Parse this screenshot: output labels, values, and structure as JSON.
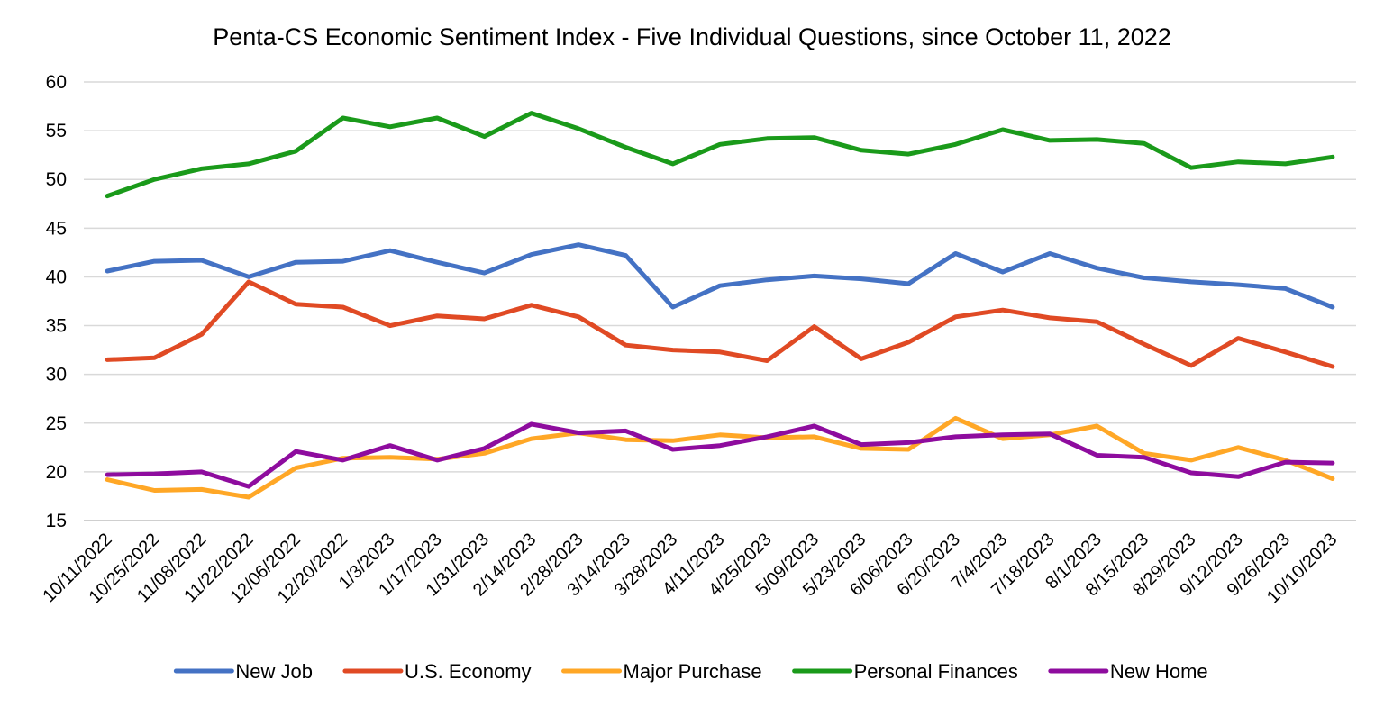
{
  "chart_data": {
    "type": "line",
    "title": "Penta-CS Economic Sentiment Index - Five Individual Questions, since October 11, 2022",
    "xlabel": "",
    "ylabel": "",
    "ylim": [
      15,
      60
    ],
    "yticks": [
      "15",
      "20",
      "25",
      "30",
      "35",
      "40",
      "45",
      "50",
      "55",
      "60"
    ],
    "grid": true,
    "legend_position": "bottom",
    "categories": [
      "10/11/2022",
      "10/25/2022",
      "11/08/2022",
      "11/22/2022",
      "12/06/2022",
      "12/20/2022",
      "1/3/2023",
      "1/17/2023",
      "1/31/2023",
      "2/14/2023",
      "2/28/2023",
      "3/14/2023",
      "3/28/2023",
      "4/11/2023",
      "4/25/2023",
      "5/09/2023",
      "5/23/2023",
      "6/06/2023",
      "6/20/2023",
      "7/4/2023",
      "7/18/2023",
      "8/1/2023",
      "8/15/2023",
      "8/29/2023",
      "9/12/2023",
      "9/26/2023",
      "10/10/2023"
    ],
    "series": [
      {
        "name": "New Job",
        "color": "#4472C4",
        "values": [
          40.6,
          41.6,
          41.7,
          40.0,
          41.5,
          41.6,
          42.7,
          41.5,
          40.4,
          42.3,
          43.3,
          42.2,
          36.9,
          39.1,
          39.7,
          40.1,
          39.8,
          39.3,
          42.4,
          40.5,
          42.4,
          40.9,
          39.9,
          39.5,
          39.2,
          38.8,
          36.9
        ]
      },
      {
        "name": "U.S. Economy",
        "color": "#E04A24",
        "values": [
          31.5,
          31.7,
          34.1,
          39.5,
          37.2,
          36.9,
          35.0,
          36.0,
          35.7,
          37.1,
          35.9,
          33.0,
          32.5,
          32.3,
          31.4,
          34.9,
          31.6,
          33.3,
          35.9,
          36.6,
          35.8,
          35.4,
          33.1,
          30.9,
          33.7,
          32.3,
          30.8
        ]
      },
      {
        "name": "Major Purchase",
        "color": "#FFA726",
        "values": [
          19.2,
          18.1,
          18.2,
          17.4,
          20.4,
          21.4,
          21.5,
          21.3,
          21.9,
          23.4,
          24.0,
          23.3,
          23.2,
          23.8,
          23.5,
          23.6,
          22.4,
          22.3,
          25.5,
          23.4,
          23.8,
          24.7,
          21.9,
          21.2,
          22.5,
          21.2,
          19.3
        ]
      },
      {
        "name": "Personal Finances",
        "color": "#1A9A1A",
        "values": [
          48.3,
          50.0,
          51.1,
          51.6,
          52.9,
          56.3,
          55.4,
          56.3,
          54.4,
          56.8,
          55.2,
          53.3,
          51.6,
          53.6,
          54.2,
          54.3,
          53.0,
          52.6,
          53.6,
          55.1,
          54.0,
          54.1,
          53.7,
          51.2,
          51.8,
          51.6,
          52.3
        ]
      },
      {
        "name": "New Home",
        "color": "#8E0C9E",
        "values": [
          19.7,
          19.8,
          20.0,
          18.5,
          22.1,
          21.2,
          22.7,
          21.2,
          22.4,
          24.9,
          24.0,
          24.2,
          22.3,
          22.7,
          23.6,
          24.7,
          22.8,
          23.0,
          23.6,
          23.8,
          23.9,
          21.7,
          21.5,
          19.9,
          19.5,
          21.0,
          20.9
        ]
      }
    ]
  }
}
